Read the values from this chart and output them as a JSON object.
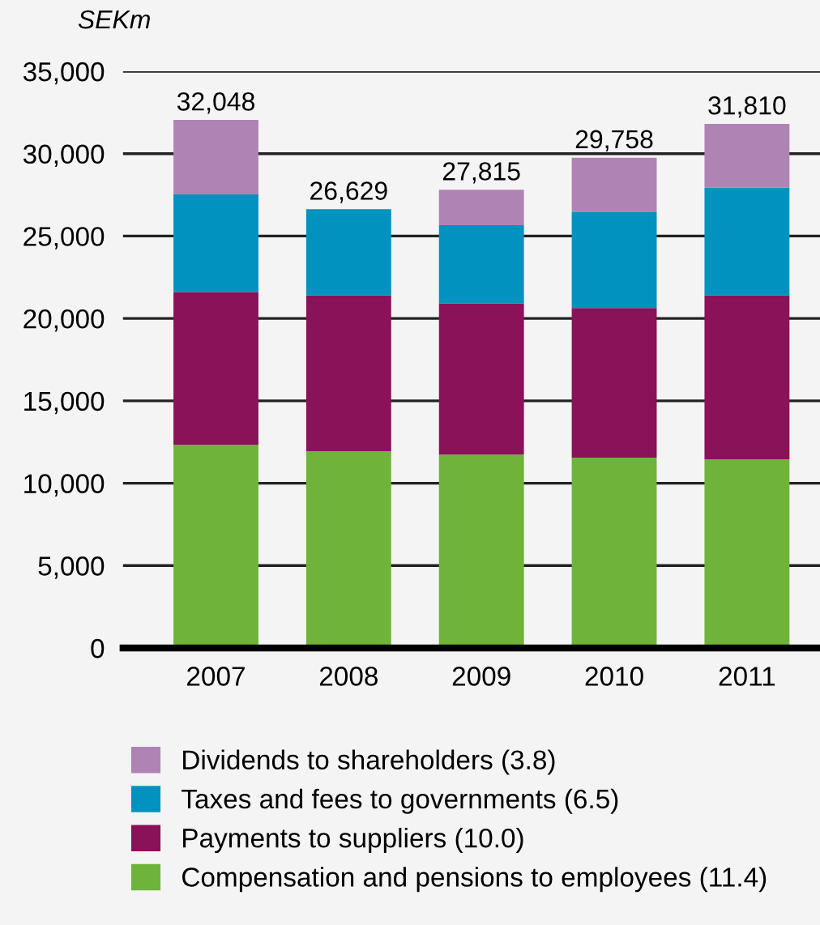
{
  "chart_data": {
    "type": "bar",
    "stacked": true,
    "ylabel": "SEKm",
    "categories": [
      "2007",
      "2008",
      "2009",
      "2010",
      "2011"
    ],
    "series": [
      {
        "name": "Compensation and pensions to employees (11.4)",
        "color": "#6fb33b",
        "values": [
          12340,
          11940,
          11740,
          11550,
          11450
        ]
      },
      {
        "name": "Payments to suppliers (10.0)",
        "color": "#8a1258",
        "values": [
          9270,
          9470,
          9180,
          9080,
          9960
        ]
      },
      {
        "name": "Taxes and fees to governments (6.5)",
        "color": "#0093bf",
        "values": [
          5920,
          5219,
          4740,
          5820,
          6520
        ]
      },
      {
        "name": "Dividends to shareholders (3.8)",
        "color": "#b083b5",
        "values": [
          4518,
          null,
          2155,
          3308,
          3880
        ]
      }
    ],
    "totals": [
      "32,048",
      "26,629",
      "27,815",
      "29,758",
      "31,810"
    ],
    "ylim": [
      0,
      35000
    ],
    "yticks": [
      {
        "value": 0,
        "label": "0"
      },
      {
        "value": 5000,
        "label": "5,000"
      },
      {
        "value": 10000,
        "label": "10,000"
      },
      {
        "value": 15000,
        "label": "15,000"
      },
      {
        "value": 20000,
        "label": "20,000"
      },
      {
        "value": 25000,
        "label": "25,000"
      },
      {
        "value": 30000,
        "label": "30,000"
      },
      {
        "value": 35000,
        "label": "35,000"
      }
    ],
    "grid": "y",
    "legend": "bottom"
  }
}
